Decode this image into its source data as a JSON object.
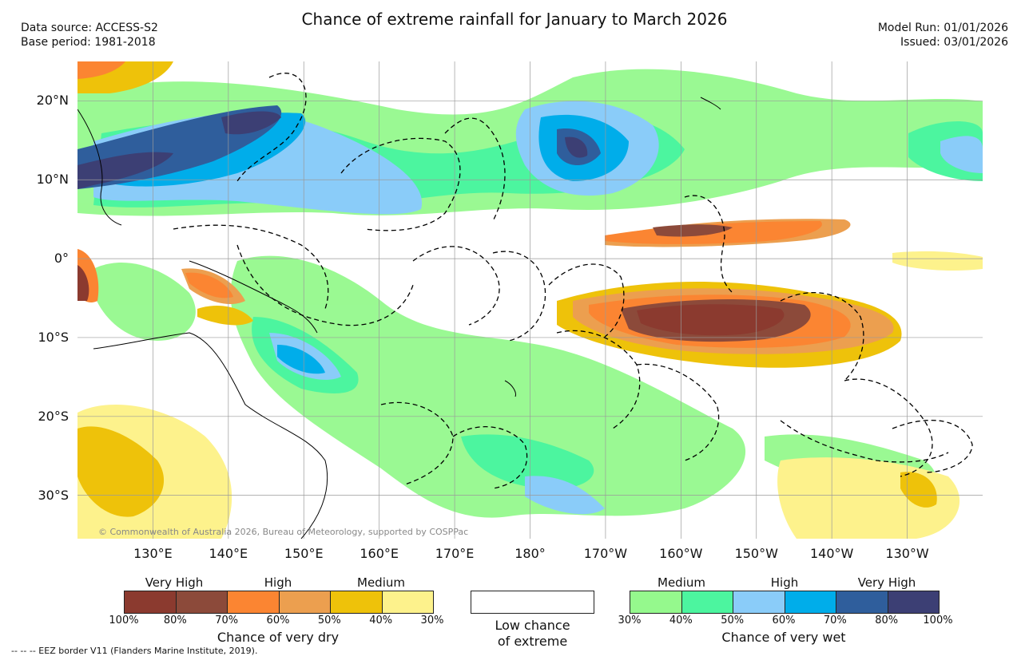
{
  "header": {
    "title": "Chance of extreme rainfall for January to March 2026",
    "data_source": "Data source: ACCESS-S2",
    "base_period": "Base period: 1981-2018",
    "model_run": "Model Run: 01/01/2026",
    "issued": "Issued: 03/01/2026"
  },
  "map": {
    "copyright": "© Commonwealth of Australia 2026, Bureau of Meteorology, supported by COSPPac",
    "lon_labels": [
      "130°E",
      "140°E",
      "150°E",
      "160°E",
      "170°E",
      "180°",
      "170°W",
      "160°W",
      "150°W",
      "140°W",
      "130°W"
    ],
    "lat_labels": [
      "20°N",
      "10°N",
      "0°",
      "10°S",
      "20°S",
      "30°S"
    ],
    "lat_values": [
      20,
      10,
      0,
      -10,
      -20,
      -30
    ],
    "lat_range": [
      -35.5,
      25
    ],
    "lon_range_east": [
      120,
      240
    ],
    "lon_values": [
      130,
      140,
      150,
      160,
      170,
      180,
      190,
      200,
      210,
      220,
      230
    ]
  },
  "legend_dry": {
    "categories": [
      "Very High",
      "High",
      "Medium"
    ],
    "colors": [
      "#8b3a2f",
      "#8c4a3a",
      "#fb8532",
      "#ec9f4f",
      "#eec20a",
      "#fdf28c"
    ],
    "ticks": [
      "100%",
      "80%",
      "70%",
      "60%",
      "50%",
      "40%",
      "30%"
    ],
    "caption": "Chance of very dry"
  },
  "legend_low": {
    "caption_line1": "Low chance",
    "caption_line2": "of extreme"
  },
  "legend_wet": {
    "categories": [
      "Medium",
      "High",
      "Very High"
    ],
    "colors": [
      "#95f98d",
      "#4cf59f",
      "#8accf9",
      "#00adea",
      "#2f5e9c",
      "#3c3f74"
    ],
    "ticks": [
      "30%",
      "40%",
      "50%",
      "60%",
      "70%",
      "80%",
      "100%"
    ],
    "caption": "Chance of very wet"
  },
  "footer": {
    "eez_note": "-- -- -- EEZ border V11 (Flanders Marine Institute, 2019)."
  }
}
